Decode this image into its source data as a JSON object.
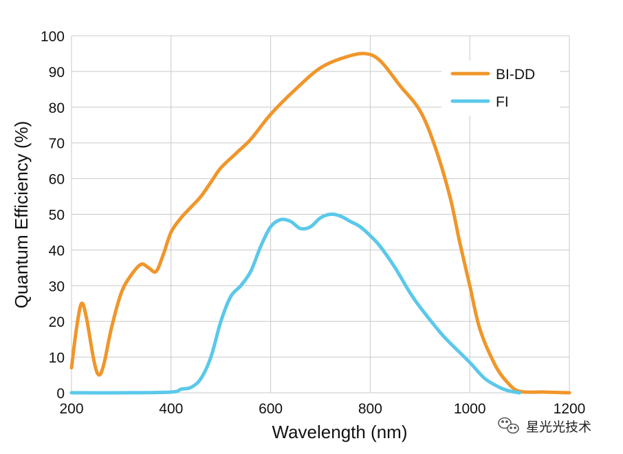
{
  "chart_data": {
    "type": "line",
    "title": "",
    "xlabel": "Wavelength (nm)",
    "ylabel": "Quantum Efficiency (%)",
    "xlim": [
      200,
      1200
    ],
    "ylim": [
      0,
      100
    ],
    "xticks": [
      200,
      400,
      600,
      800,
      1000,
      1200
    ],
    "yticks": [
      0,
      10,
      20,
      30,
      40,
      50,
      60,
      70,
      80,
      90,
      100
    ],
    "grid": true,
    "legend_position": "top-right",
    "series": [
      {
        "name": "BI-DD",
        "color": "#f0962a",
        "points": [
          [
            200,
            7
          ],
          [
            210,
            18
          ],
          [
            220,
            25
          ],
          [
            230,
            21
          ],
          [
            245,
            9
          ],
          [
            255,
            5
          ],
          [
            265,
            8
          ],
          [
            280,
            18
          ],
          [
            300,
            28
          ],
          [
            320,
            33
          ],
          [
            340,
            36
          ],
          [
            355,
            35
          ],
          [
            370,
            34
          ],
          [
            385,
            39
          ],
          [
            400,
            45
          ],
          [
            420,
            49
          ],
          [
            440,
            52
          ],
          [
            460,
            55
          ],
          [
            480,
            59
          ],
          [
            500,
            63
          ],
          [
            530,
            67
          ],
          [
            560,
            71
          ],
          [
            600,
            78
          ],
          [
            650,
            85
          ],
          [
            700,
            91
          ],
          [
            750,
            94
          ],
          [
            790,
            95
          ],
          [
            820,
            93
          ],
          [
            860,
            86
          ],
          [
            900,
            79
          ],
          [
            930,
            69
          ],
          [
            960,
            55
          ],
          [
            980,
            42
          ],
          [
            1000,
            30
          ],
          [
            1020,
            18
          ],
          [
            1050,
            8
          ],
          [
            1075,
            3
          ],
          [
            1100,
            0.4
          ],
          [
            1150,
            0.2
          ],
          [
            1200,
            0
          ]
        ]
      },
      {
        "name": "FI",
        "color": "#5bc8ea",
        "points": [
          [
            200,
            0
          ],
          [
            300,
            0
          ],
          [
            400,
            0.2
          ],
          [
            420,
            1
          ],
          [
            440,
            1.5
          ],
          [
            460,
            4
          ],
          [
            480,
            10
          ],
          [
            500,
            20
          ],
          [
            520,
            27
          ],
          [
            540,
            30
          ],
          [
            560,
            34
          ],
          [
            580,
            41
          ],
          [
            600,
            46.5
          ],
          [
            620,
            48.5
          ],
          [
            640,
            48
          ],
          [
            660,
            46
          ],
          [
            680,
            46.5
          ],
          [
            700,
            49
          ],
          [
            720,
            50
          ],
          [
            740,
            49.5
          ],
          [
            760,
            48
          ],
          [
            780,
            46.5
          ],
          [
            800,
            44
          ],
          [
            820,
            41
          ],
          [
            850,
            35
          ],
          [
            880,
            28
          ],
          [
            900,
            24
          ],
          [
            940,
            17
          ],
          [
            960,
            14
          ],
          [
            1000,
            8.5
          ],
          [
            1030,
            4
          ],
          [
            1060,
            1.5
          ],
          [
            1080,
            0.5
          ],
          [
            1100,
            0
          ]
        ]
      }
    ]
  },
  "watermark": {
    "text": "星光光技术",
    "icon": "wechat-logo-icon"
  }
}
